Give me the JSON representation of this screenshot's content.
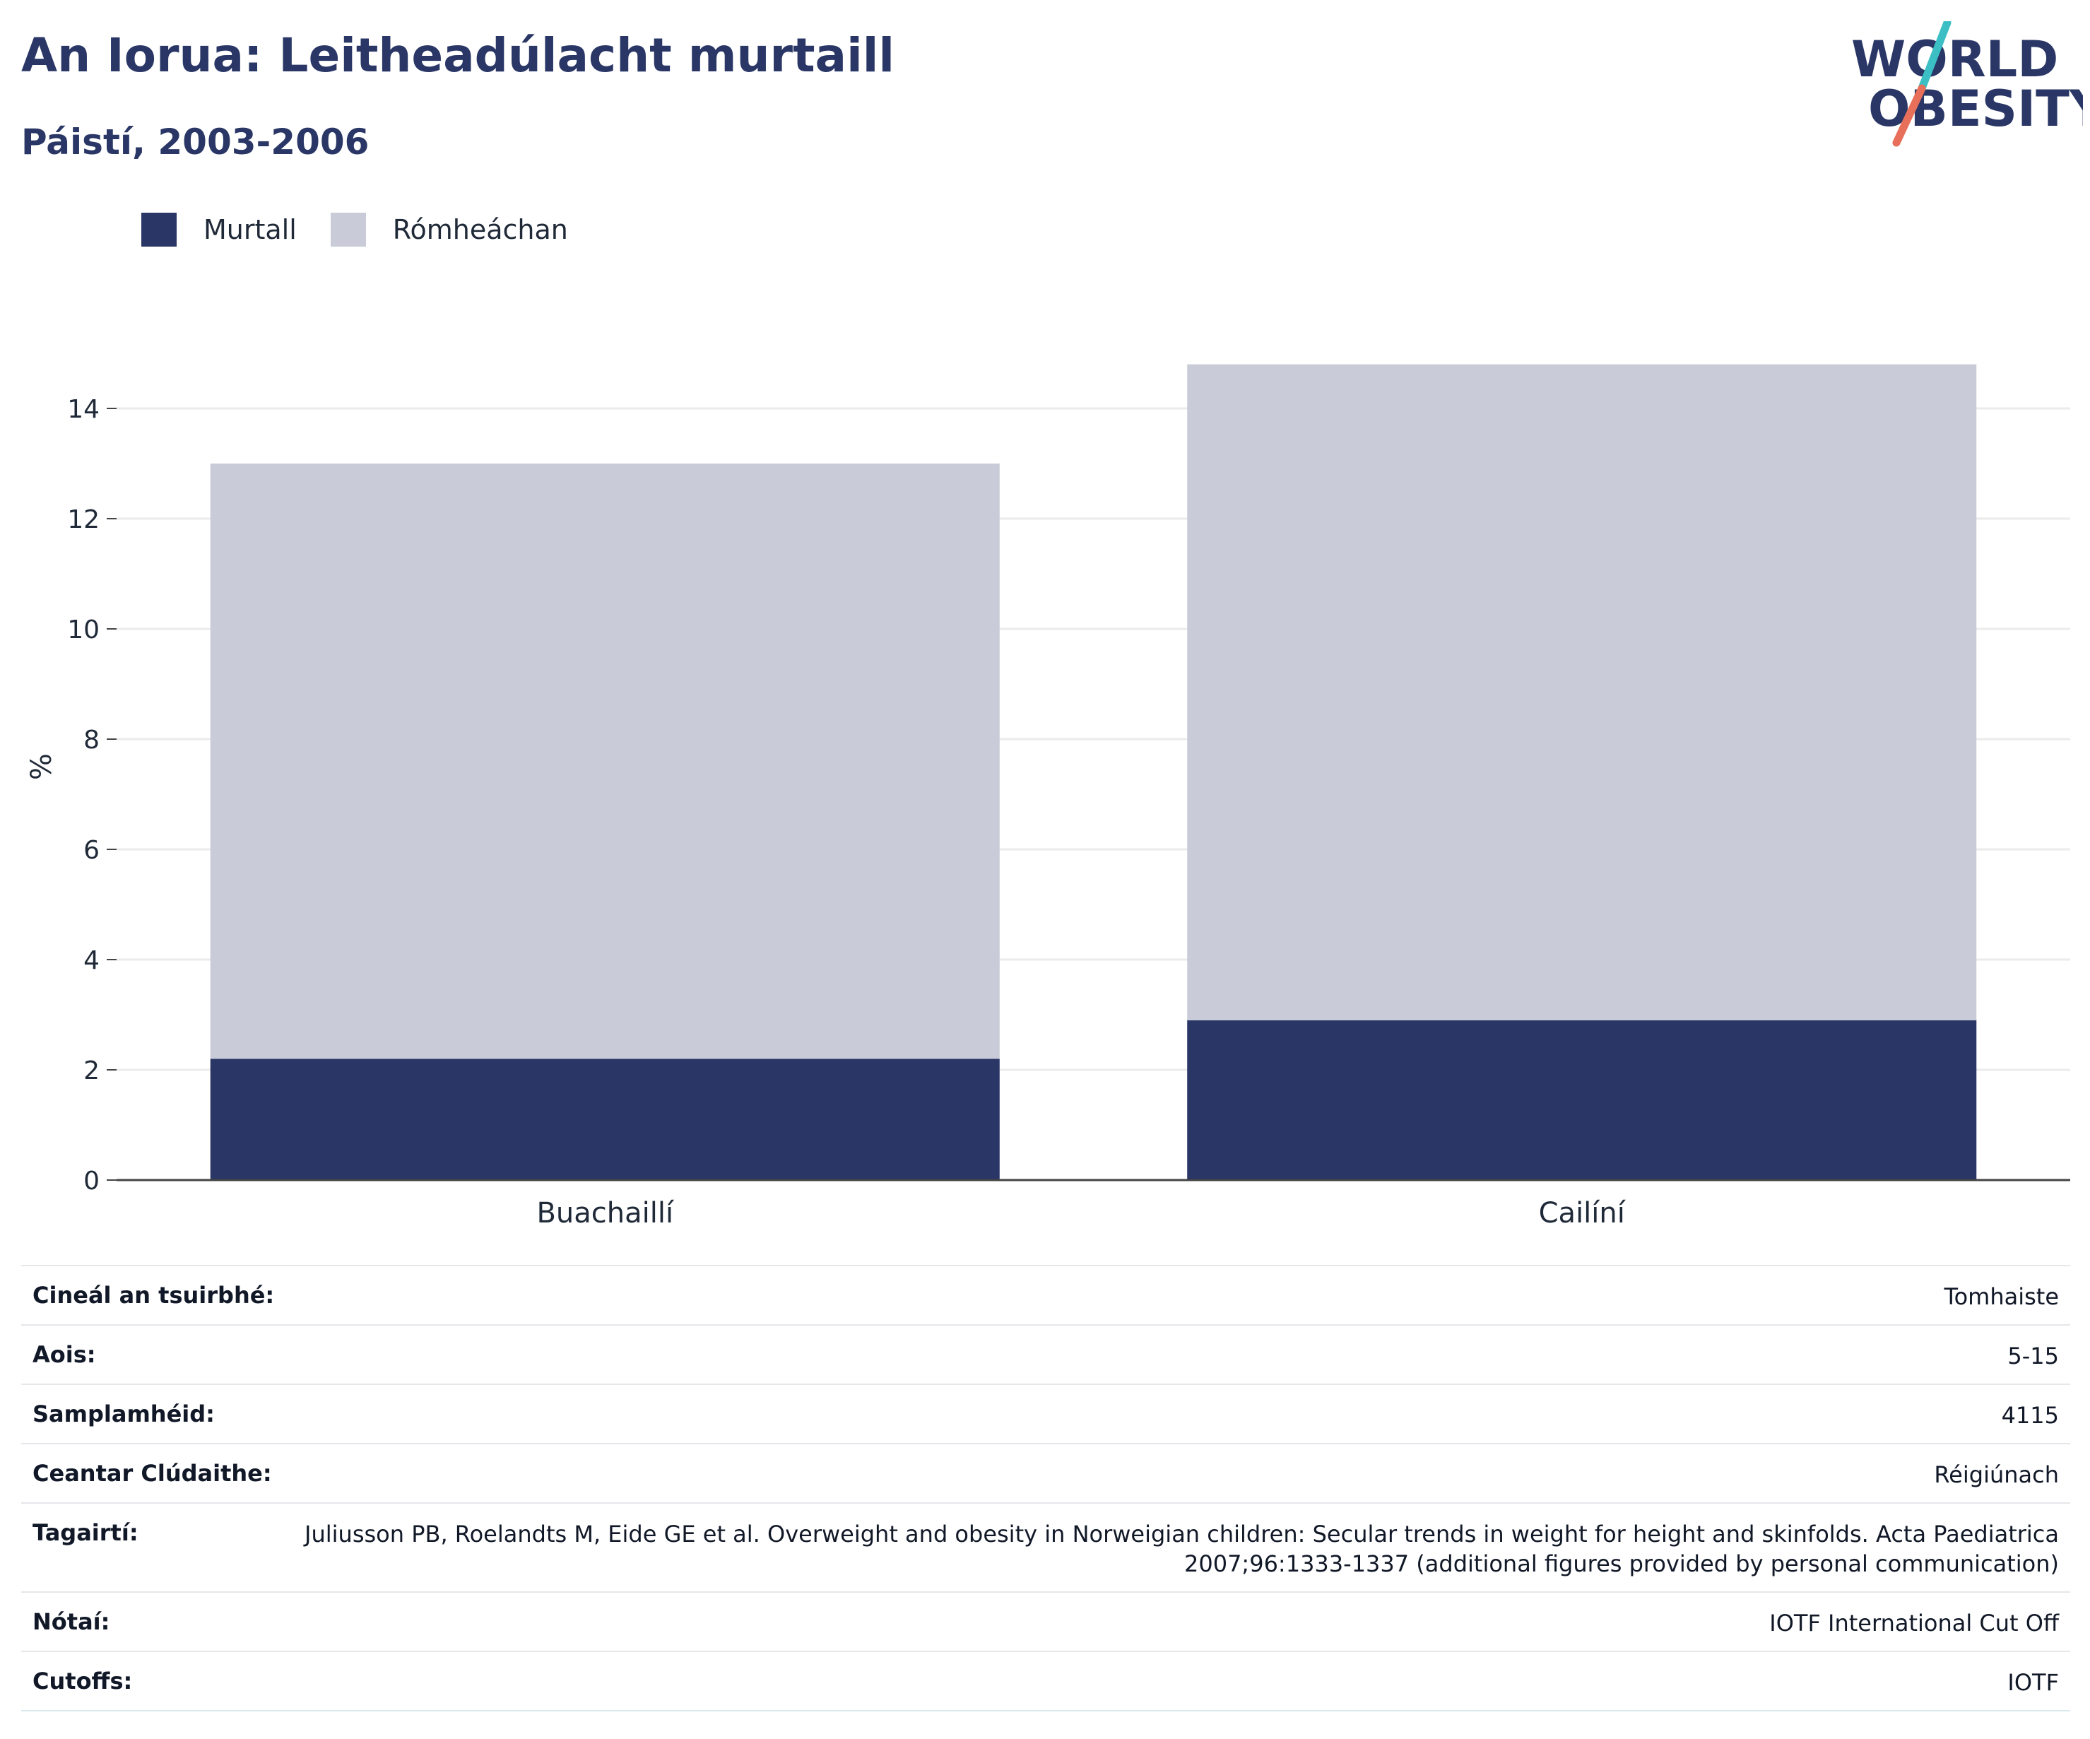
{
  "header": {
    "title": "An Iorua: Leitheadúlacht murtaill",
    "subtitle": "Páistí, 2003-2006"
  },
  "logo": {
    "line1": "WORLD",
    "line2": "OBESITY",
    "colors": {
      "text": "#2a3766",
      "slash_top": "#3bbfc4",
      "slash_bottom": "#e8705a"
    }
  },
  "chart_data": {
    "type": "bar",
    "stacked": true,
    "categories": [
      "Buachaillí",
      "Cailíní"
    ],
    "series": [
      {
        "name": "Murtall",
        "color": "#2a3766",
        "values": [
          2.2,
          2.9
        ]
      },
      {
        "name": "Rómheáchan",
        "color": "#c9ccd8",
        "values": [
          10.8,
          11.9
        ]
      }
    ],
    "ylabel": "%",
    "ylim": [
      0,
      15
    ],
    "yticks": [
      0,
      2,
      4,
      6,
      8,
      10,
      12,
      14
    ],
    "grid": true,
    "legend_position": "top-left"
  },
  "info_table": [
    {
      "label": "Cineál an tsuirbhé:",
      "value": "Tomhaiste"
    },
    {
      "label": "Aois:",
      "value": "5-15"
    },
    {
      "label": "Samplamhéid:",
      "value": "4115"
    },
    {
      "label": "Ceantar Clúdaithe:",
      "value": "Réigiúnach"
    },
    {
      "label": "Tagairtí:",
      "value": "Juliusson PB, Roelandts M, Eide GE et al. Overweight and obesity in Norweigian children: Secular trends in weight for height and skinfolds. Acta Paediatrica 2007;96:1333-1337 (additional figures provided by personal communication)"
    },
    {
      "label": "Nótaí:",
      "value": "IOTF International Cut Off"
    },
    {
      "label": "Cutoffs:",
      "value": "IOTF"
    }
  ]
}
